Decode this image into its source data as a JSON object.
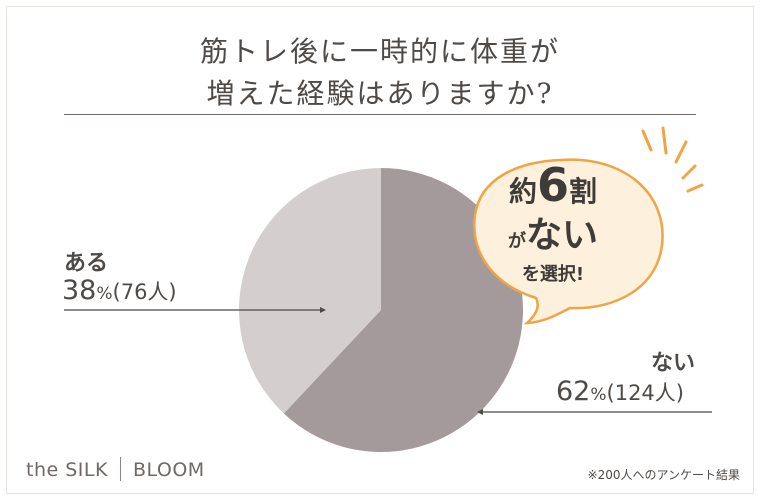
{
  "title_line1": "筋トレ後に一時的に体重が",
  "title_line2": "増えた経験はありますか?",
  "chart_data": {
    "type": "pie",
    "title": "筋トレ後に一時的に体重が増えた経験はありますか?",
    "slices": [
      {
        "label": "ない",
        "percent": 62,
        "count": "124人",
        "color": "#a59a9b"
      },
      {
        "label": "ある",
        "percent": 38,
        "count": "76人",
        "color": "#d4cfce"
      }
    ]
  },
  "labels": {
    "aru_name": "ある",
    "aru_num": "38",
    "aru_pct": "%",
    "aru_count": "(76人)",
    "nai_name": "ない",
    "nai_num": "62",
    "nai_pct": "%",
    "nai_count": "(124人)"
  },
  "bubble": {
    "line1_a": "約",
    "line1_b": "6",
    "line1_c": "割",
    "line2_a": "が",
    "line2_b": "ない",
    "line3": "を選択!"
  },
  "brand": {
    "left": "the SILK",
    "right": "BLOOM"
  },
  "footnote": "※200人へのアンケート結果",
  "colors": {
    "accent": "#f0a444",
    "bubble_fill": "#fdf1dd",
    "text": "#4e4a47"
  }
}
